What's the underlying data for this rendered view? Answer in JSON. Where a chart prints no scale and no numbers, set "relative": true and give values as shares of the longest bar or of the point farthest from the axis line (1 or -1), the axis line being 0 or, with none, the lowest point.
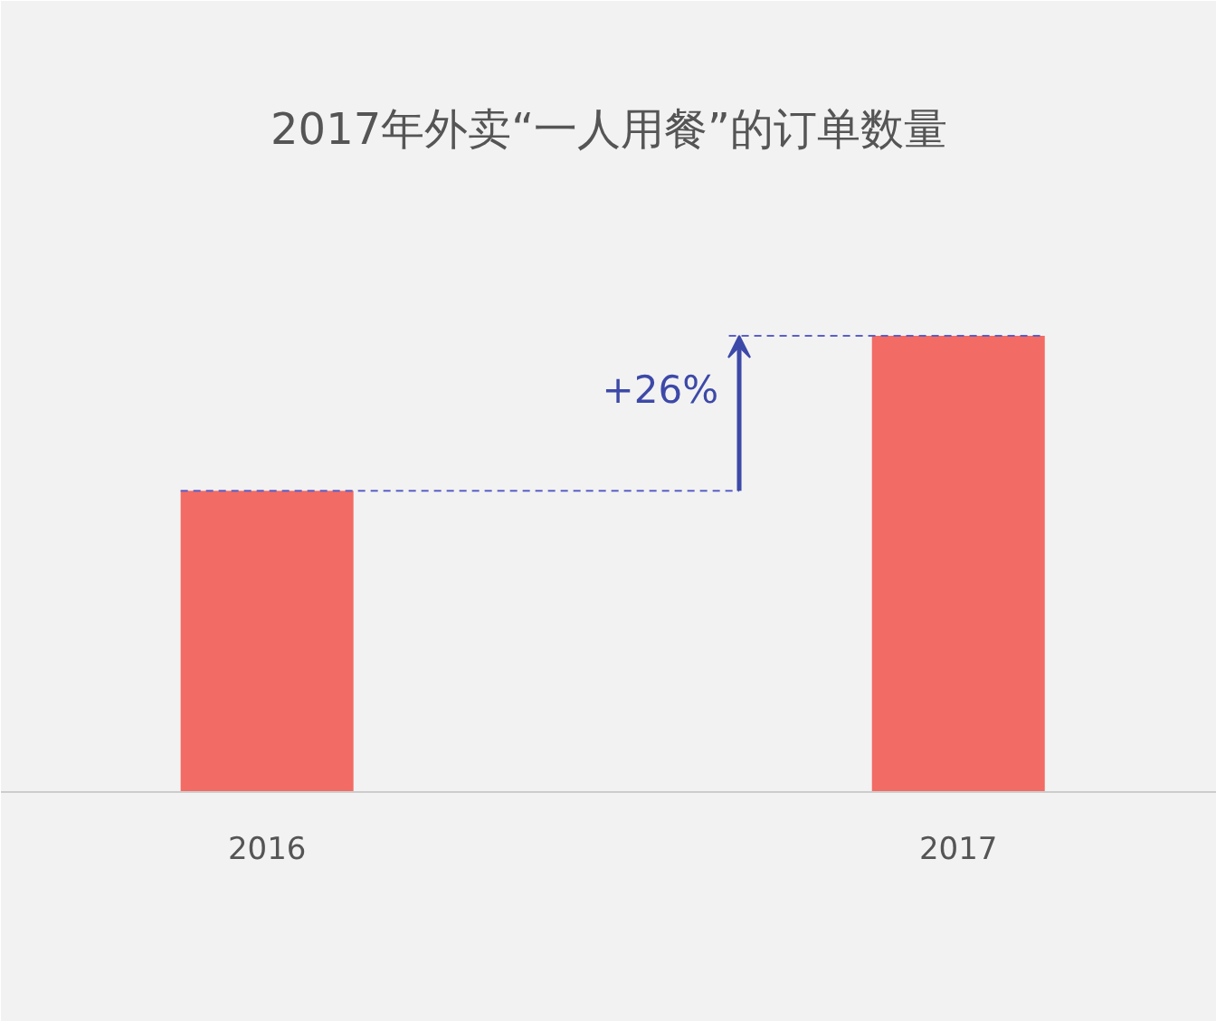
{
  "chart_data": {
    "type": "bar",
    "title": "2017年外卖“一人用餐”的订单数量",
    "categories": [
      "2016",
      "2017"
    ],
    "values": [
      0.66,
      1
    ],
    "relative": true,
    "color": "#f26b64",
    "ref_lines": [
      {
        "axis": "y",
        "value": 0.66,
        "color": "#5b5fc7",
        "line_style": "dashed"
      },
      {
        "axis": "y",
        "value": 1,
        "color": "#5b5fc7",
        "line_style": "dashed"
      }
    ],
    "annotations": [
      "+26%"
    ],
    "grid": false
  }
}
